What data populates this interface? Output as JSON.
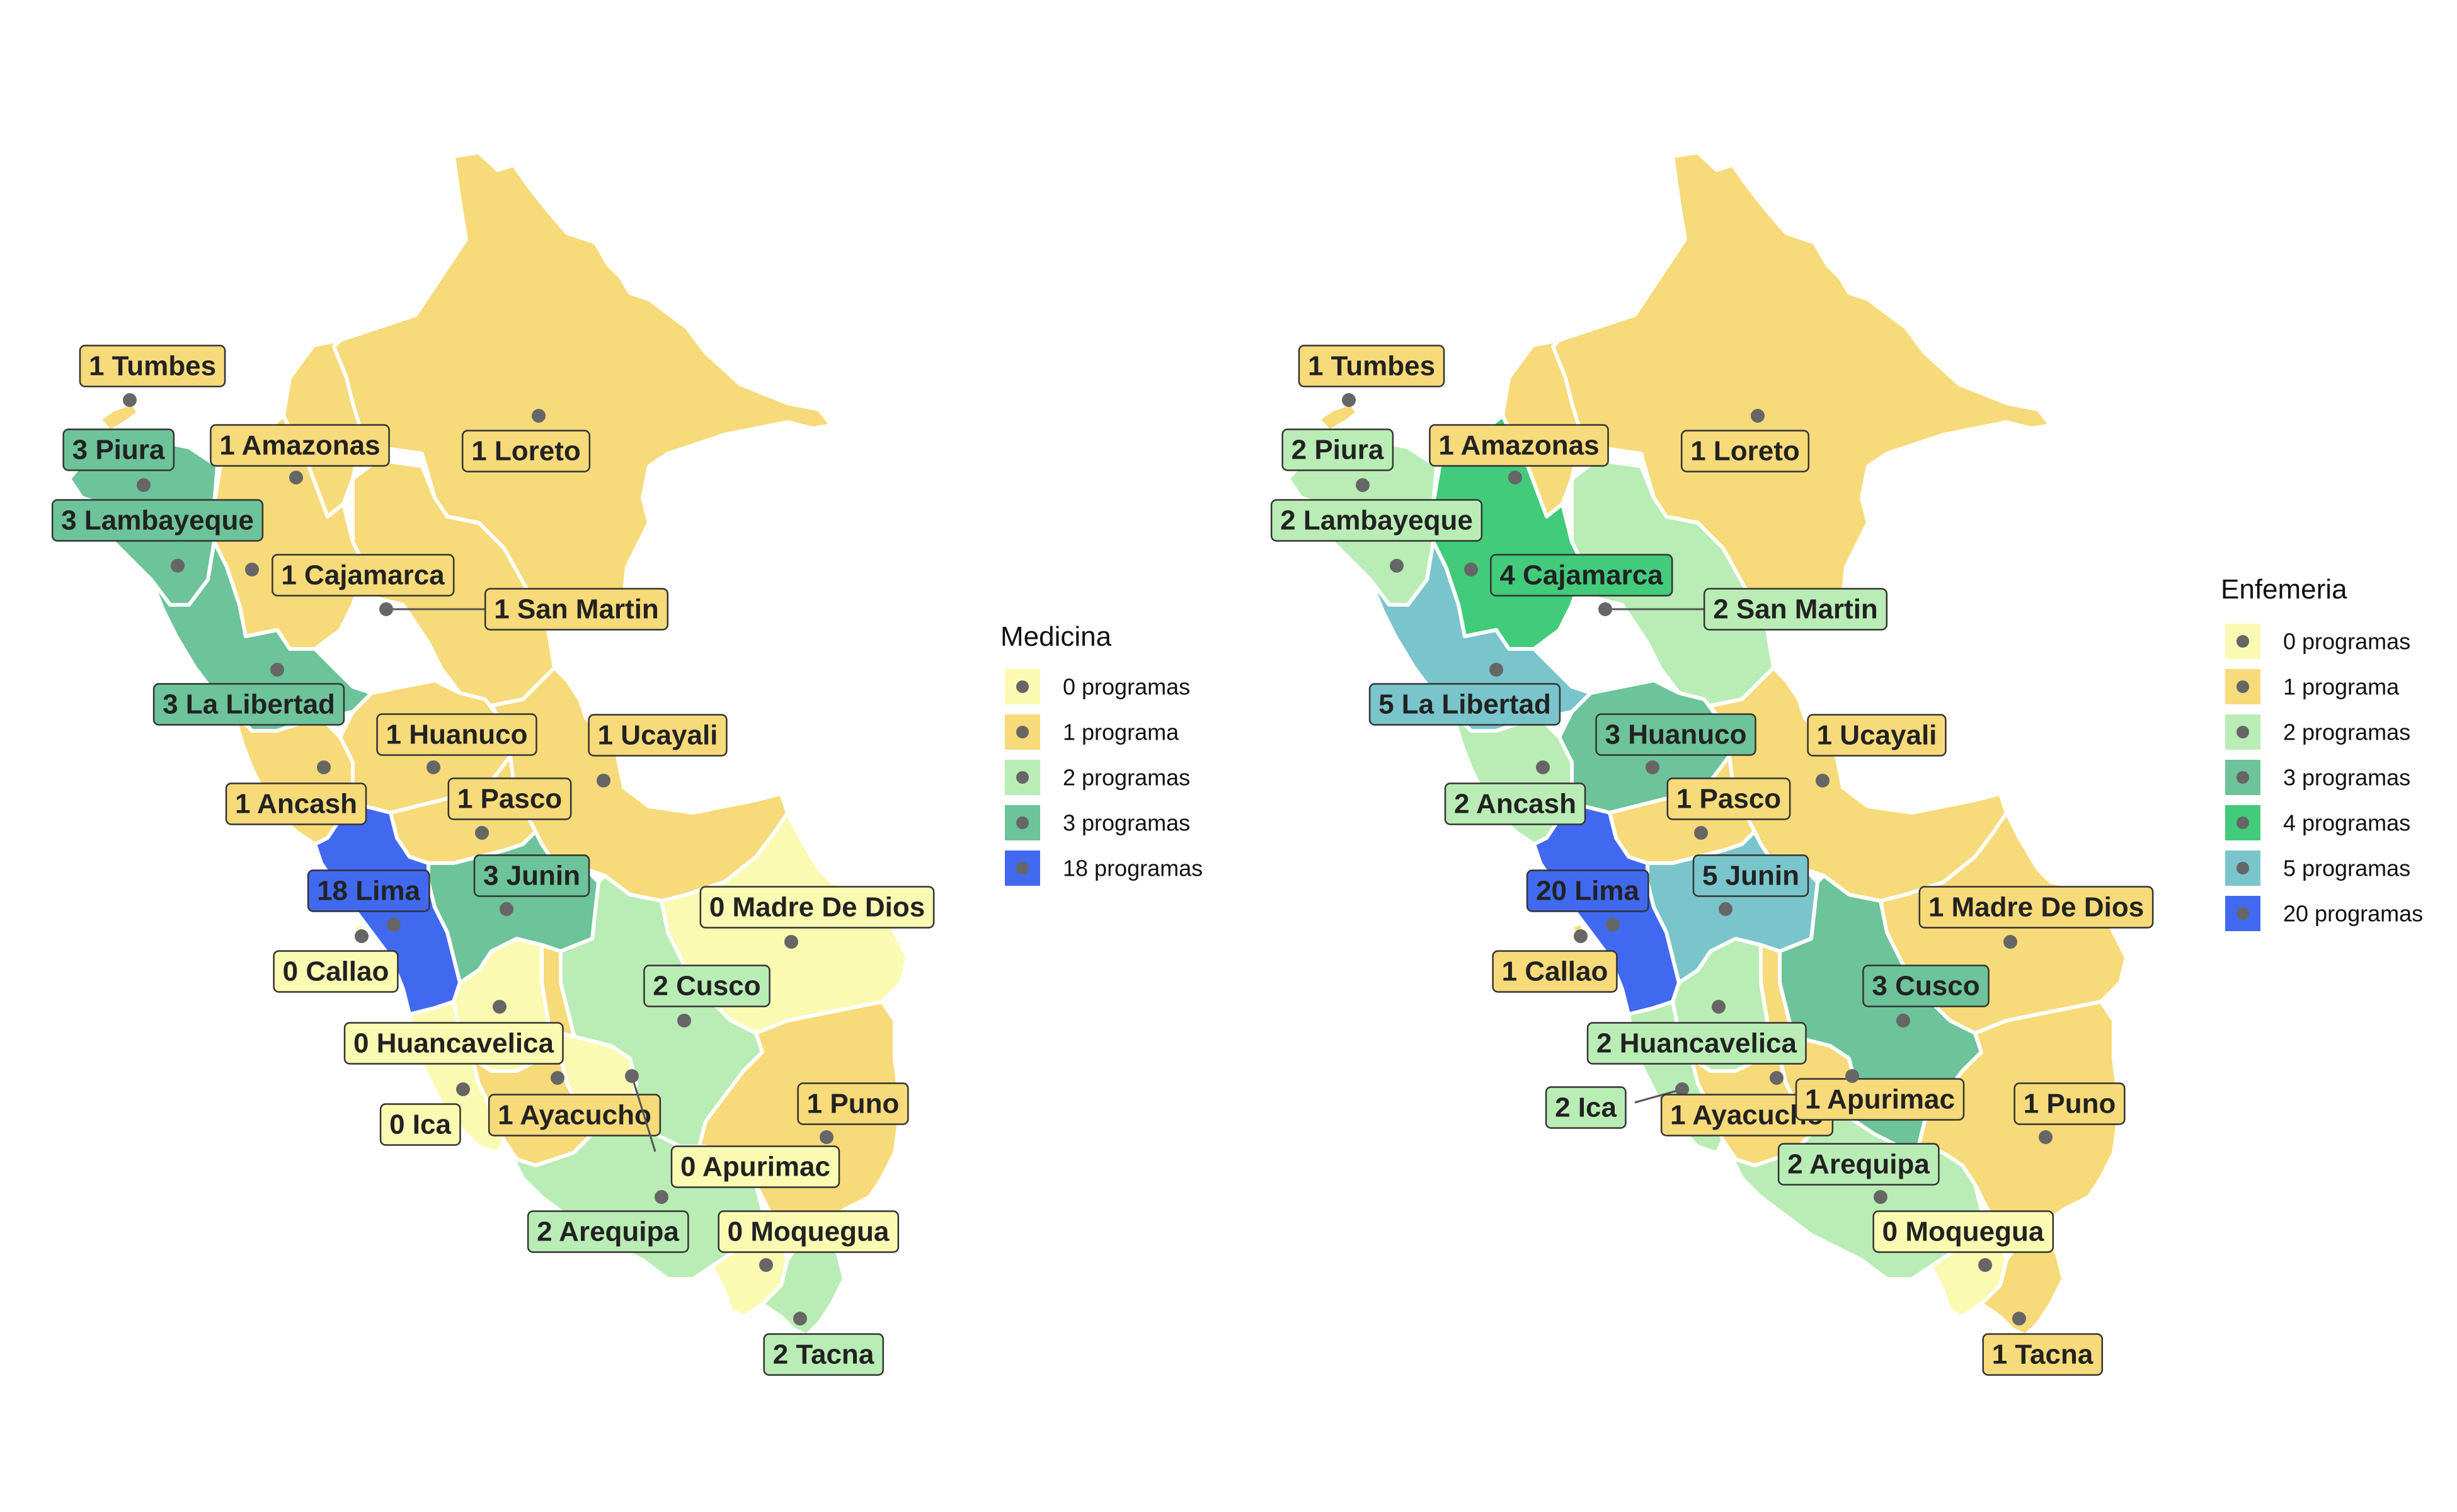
{
  "maps": [
    {
      "legend_title": "Medicina",
      "legend": [
        {
          "label": "0 programas",
          "color": "#FAFAB2"
        },
        {
          "label": "1 programa",
          "color": "#F7DA79"
        },
        {
          "label": "2 programas",
          "color": "#B9EDB5"
        },
        {
          "label": "3 programas",
          "color": "#6DC39A"
        },
        {
          "label": "18 programas",
          "color": "#4169F0"
        }
      ],
      "regions": [
        {
          "id": "tumbes",
          "label": "1 Tumbes",
          "count": 1
        },
        {
          "id": "piura",
          "label": "3 Piura",
          "count": 3
        },
        {
          "id": "lambayeque",
          "label": "3 Lambayeque",
          "count": 3
        },
        {
          "id": "amazonas",
          "label": "1 Amazonas",
          "count": 1
        },
        {
          "id": "loreto",
          "label": "1 Loreto",
          "count": 1
        },
        {
          "id": "cajamarca",
          "label": "1 Cajamarca",
          "count": 1
        },
        {
          "id": "san_martin",
          "label": "1 San Martin",
          "count": 1
        },
        {
          "id": "la_libertad",
          "label": "3 La Libertad",
          "count": 3
        },
        {
          "id": "huanuco",
          "label": "1 Huanuco",
          "count": 1
        },
        {
          "id": "ucayali",
          "label": "1 Ucayali",
          "count": 1
        },
        {
          "id": "ancash",
          "label": "1 Ancash",
          "count": 1
        },
        {
          "id": "pasco",
          "label": "1 Pasco",
          "count": 1
        },
        {
          "id": "junin",
          "label": "3 Junin",
          "count": 3
        },
        {
          "id": "lima",
          "label": "18 Lima",
          "count": 18
        },
        {
          "id": "madre_de_dios",
          "label": "0 Madre De Dios",
          "count": 0
        },
        {
          "id": "callao",
          "label": "0 Callao",
          "count": 0
        },
        {
          "id": "cusco",
          "label": "2 Cusco",
          "count": 2
        },
        {
          "id": "huancavelica",
          "label": "0 Huancavelica",
          "count": 0
        },
        {
          "id": "ica",
          "label": "0 Ica",
          "count": 0
        },
        {
          "id": "ayacucho",
          "label": "1 Ayacucho",
          "count": 1
        },
        {
          "id": "puno",
          "label": "1 Puno",
          "count": 1
        },
        {
          "id": "apurimac",
          "label": "0 Apurimac",
          "count": 0
        },
        {
          "id": "arequipa",
          "label": "2 Arequipa",
          "count": 2
        },
        {
          "id": "moquegua",
          "label": "0 Moquegua",
          "count": 0
        },
        {
          "id": "tacna",
          "label": "2 Tacna",
          "count": 2
        }
      ]
    },
    {
      "legend_title": "Enfemeria",
      "legend": [
        {
          "label": "0 programas",
          "color": "#FAFAB2"
        },
        {
          "label": "1 programa",
          "color": "#F7DA79"
        },
        {
          "label": "2 programas",
          "color": "#B9EDB5"
        },
        {
          "label": "3 programas",
          "color": "#6DC39A"
        },
        {
          "label": "4 programas",
          "color": "#42CB7B"
        },
        {
          "label": "5 programas",
          "color": "#79C5CB"
        },
        {
          "label": "20 programas",
          "color": "#4169F0"
        }
      ],
      "regions": [
        {
          "id": "tumbes",
          "label": "1 Tumbes",
          "count": 1
        },
        {
          "id": "piura",
          "label": "2 Piura",
          "count": 2
        },
        {
          "id": "lambayeque",
          "label": "2 Lambayeque",
          "count": 2
        },
        {
          "id": "amazonas",
          "label": "1 Amazonas",
          "count": 1
        },
        {
          "id": "loreto",
          "label": "1 Loreto",
          "count": 1
        },
        {
          "id": "cajamarca",
          "label": "4 Cajamarca",
          "count": 4
        },
        {
          "id": "san_martin",
          "label": "2 San Martin",
          "count": 2
        },
        {
          "id": "la_libertad",
          "label": "5 La Libertad",
          "count": 5
        },
        {
          "id": "huanuco",
          "label": "3 Huanuco",
          "count": 3
        },
        {
          "id": "ucayali",
          "label": "1 Ucayali",
          "count": 1
        },
        {
          "id": "ancash",
          "label": "2 Ancash",
          "count": 2
        },
        {
          "id": "pasco",
          "label": "1 Pasco",
          "count": 1
        },
        {
          "id": "junin",
          "label": "5 Junin",
          "count": 5
        },
        {
          "id": "lima",
          "label": "20 Lima",
          "count": 20
        },
        {
          "id": "madre_de_dios",
          "label": "1 Madre De Dios",
          "count": 1
        },
        {
          "id": "callao",
          "label": "1 Callao",
          "count": 1
        },
        {
          "id": "cusco",
          "label": "3 Cusco",
          "count": 3
        },
        {
          "id": "huancavelica",
          "label": "2 Huancavelica",
          "count": 2
        },
        {
          "id": "ica",
          "label": "2 Ica",
          "count": 2
        },
        {
          "id": "ayacucho",
          "label": "1 Ayacucho",
          "count": 1
        },
        {
          "id": "apurimac",
          "label": "1 Apurimac",
          "count": 1
        },
        {
          "id": "puno",
          "label": "1 Puno",
          "count": 1
        },
        {
          "id": "arequipa",
          "label": "2 Arequipa",
          "count": 2
        },
        {
          "id": "moquegua",
          "label": "0 Moquegua",
          "count": 0
        },
        {
          "id": "tacna",
          "label": "1 Tacna",
          "count": 1
        }
      ]
    }
  ]
}
